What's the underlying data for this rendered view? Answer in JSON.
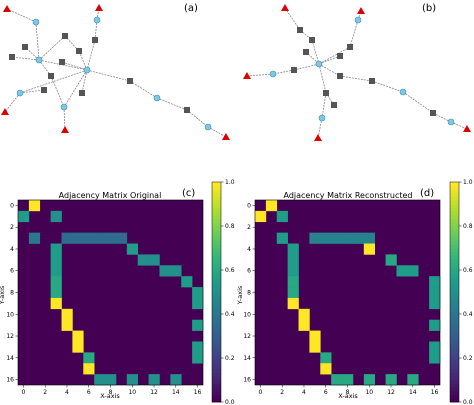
{
  "panels": [
    {
      "label": "(a)"
    },
    {
      "label": "(b)"
    },
    {
      "label": "(c)",
      "title": "Adjacency Matrix Original"
    },
    {
      "label": "(d)",
      "title": "Adjacency Matrix Reconstructed"
    }
  ],
  "axes": {
    "xlabel": "X-axis",
    "ylabel": "Y-axis",
    "xticks": [
      "0",
      "2",
      "4",
      "6",
      "8",
      "10",
      "12",
      "14",
      "16"
    ],
    "yticks": [
      "0",
      "2",
      "4",
      "6",
      "8",
      "10",
      "12",
      "14",
      "16"
    ]
  },
  "colorbar": {
    "ticks": [
      "0.0",
      "0.2",
      "0.4",
      "0.6",
      "0.8",
      "1.0"
    ],
    "colormap": "viridis"
  },
  "colors": {
    "triangle_node": "#dd0000",
    "square_node": "#555555",
    "circle_node": "#7ec8e3",
    "edge": "#888888",
    "matrix_background": "#440154"
  },
  "chart_data": [
    {
      "type": "heatmap",
      "title": "Adjacency Matrix Original",
      "xlabel": "X-axis",
      "ylabel": "Y-axis",
      "size": 17,
      "range": [
        0,
        1
      ],
      "cells": [
        [
          0,
          1,
          1.0
        ],
        [
          1,
          0,
          0.55
        ],
        [
          1,
          3,
          0.5
        ],
        [
          3,
          1,
          0.4
        ],
        [
          3,
          4,
          0.35
        ],
        [
          3,
          5,
          0.35
        ],
        [
          3,
          6,
          0.35
        ],
        [
          3,
          7,
          0.35
        ],
        [
          3,
          8,
          0.35
        ],
        [
          3,
          9,
          0.35
        ],
        [
          4,
          3,
          0.55
        ],
        [
          4,
          10,
          0.55
        ],
        [
          5,
          3,
          0.55
        ],
        [
          5,
          11,
          0.5
        ],
        [
          5,
          12,
          0.5
        ],
        [
          6,
          3,
          0.55
        ],
        [
          6,
          13,
          0.5
        ],
        [
          6,
          14,
          0.5
        ],
        [
          7,
          3,
          0.6
        ],
        [
          7,
          15,
          0.55
        ],
        [
          8,
          3,
          0.6
        ],
        [
          8,
          16,
          0.55
        ],
        [
          9,
          3,
          1.0
        ],
        [
          9,
          16,
          0.55
        ],
        [
          10,
          4,
          1.0
        ],
        [
          11,
          4,
          1.0
        ],
        [
          11,
          16,
          0.55
        ],
        [
          12,
          5,
          1.0
        ],
        [
          13,
          5,
          1.0
        ],
        [
          13,
          16,
          0.55
        ],
        [
          14,
          6,
          0.6
        ],
        [
          14,
          16,
          0.55
        ],
        [
          15,
          6,
          1.0
        ],
        [
          16,
          7,
          0.5
        ],
        [
          16,
          8,
          0.5
        ],
        [
          16,
          10,
          0.5
        ],
        [
          16,
          12,
          0.5
        ],
        [
          16,
          14,
          0.5
        ]
      ]
    },
    {
      "type": "heatmap",
      "title": "Adjacency Matrix Reconstructed",
      "xlabel": "X-axis",
      "ylabel": "Y-axis",
      "size": 17,
      "range": [
        0,
        1
      ],
      "cells": [
        [
          0,
          1,
          1.0
        ],
        [
          1,
          0,
          1.0
        ],
        [
          1,
          2,
          0.55
        ],
        [
          3,
          2,
          0.55
        ],
        [
          3,
          5,
          0.45
        ],
        [
          3,
          6,
          0.45
        ],
        [
          3,
          7,
          0.45
        ],
        [
          3,
          8,
          0.45
        ],
        [
          3,
          9,
          0.45
        ],
        [
          3,
          10,
          0.45
        ],
        [
          4,
          3,
          0.55
        ],
        [
          4,
          10,
          1.0
        ],
        [
          5,
          3,
          0.55
        ],
        [
          5,
          12,
          0.6
        ],
        [
          6,
          3,
          0.55
        ],
        [
          6,
          13,
          0.55
        ],
        [
          6,
          14,
          0.55
        ],
        [
          7,
          3,
          0.6
        ],
        [
          7,
          16,
          0.55
        ],
        [
          8,
          3,
          0.6
        ],
        [
          8,
          16,
          0.55
        ],
        [
          9,
          3,
          1.0
        ],
        [
          9,
          16,
          0.55
        ],
        [
          10,
          4,
          1.0
        ],
        [
          11,
          4,
          1.0
        ],
        [
          11,
          16,
          0.55
        ],
        [
          12,
          5,
          1.0
        ],
        [
          13,
          5,
          1.0
        ],
        [
          13,
          16,
          0.55
        ],
        [
          14,
          6,
          0.6
        ],
        [
          14,
          16,
          0.55
        ],
        [
          15,
          6,
          1.0
        ],
        [
          16,
          7,
          0.6
        ],
        [
          16,
          8,
          0.6
        ],
        [
          16,
          10,
          0.6
        ],
        [
          16,
          12,
          0.6
        ],
        [
          16,
          14,
          0.6
        ]
      ]
    }
  ]
}
